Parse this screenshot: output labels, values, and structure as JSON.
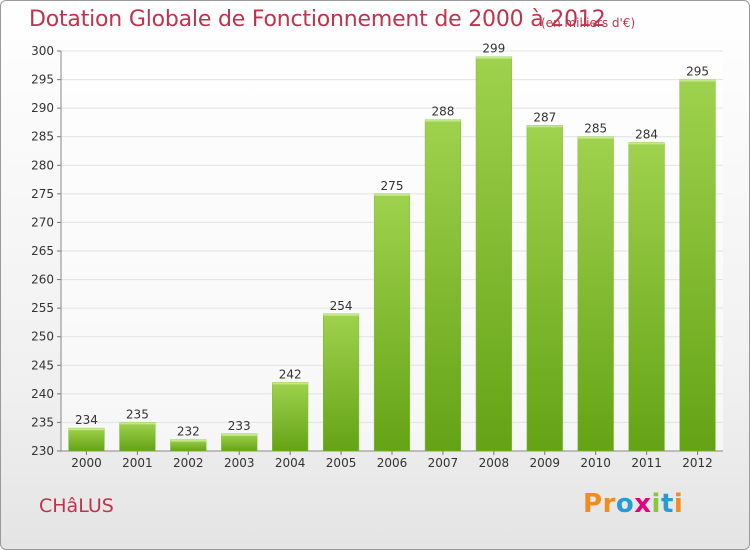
{
  "title": "Dotation Globale de Fonctionnement de 2000 à 2012",
  "unit_note": "(en milliers d'€)",
  "city": "CHâLUS",
  "logo": {
    "letters": [
      "P",
      "r",
      "o",
      "x",
      "i",
      "t",
      "i"
    ],
    "colors": [
      "#f28c1e",
      "#f28c1e",
      "#2a9ad6",
      "#e5007e",
      "#8cc63e",
      "#2a9ad6",
      "#f28c1e"
    ]
  },
  "colors": {
    "title": "#c0334d",
    "bar_light": "#9fd24e",
    "bar_dark": "#64a315",
    "grid": "#e2e2e2"
  },
  "chart_data": {
    "type": "bar",
    "title": "Dotation Globale de Fonctionnement de 2000 à 2012",
    "xlabel": "",
    "ylabel": "",
    "categories": [
      "2000",
      "2001",
      "2002",
      "2003",
      "2004",
      "2005",
      "2006",
      "2007",
      "2008",
      "2009",
      "2010",
      "2011",
      "2012"
    ],
    "values": [
      234,
      235,
      232,
      233,
      242,
      254,
      275,
      288,
      299,
      287,
      285,
      284,
      295
    ],
    "ylim": [
      230,
      300
    ],
    "yticks": [
      230,
      235,
      240,
      245,
      250,
      255,
      260,
      265,
      270,
      275,
      280,
      285,
      290,
      295,
      300
    ],
    "grid": true,
    "legend": "none"
  }
}
